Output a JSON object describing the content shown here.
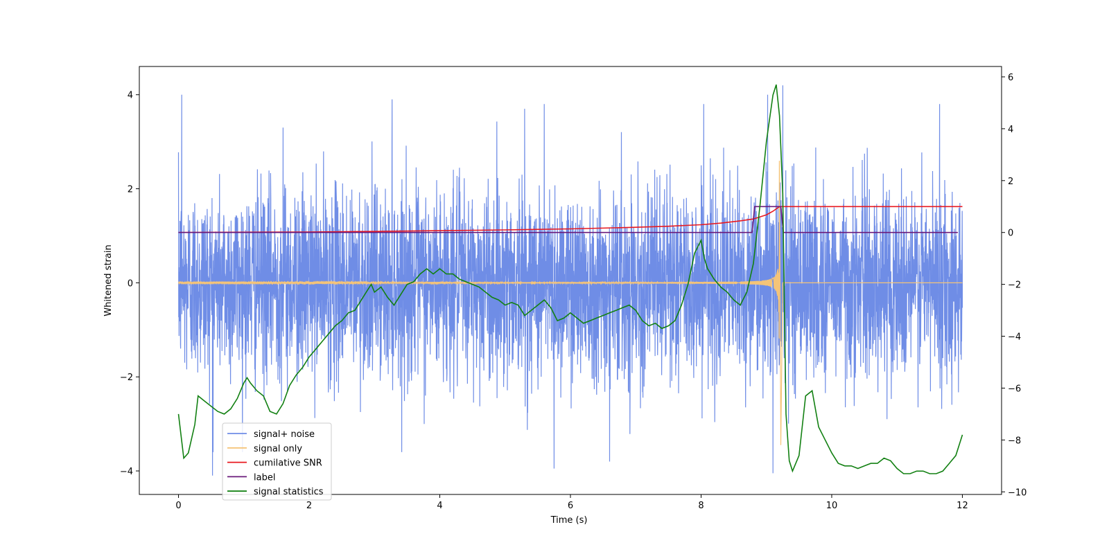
{
  "chart_data": {
    "type": "line",
    "xlabel": "Time (s)",
    "ylabel": "Whitened strain",
    "ylabel_right": "",
    "xlim": [
      -0.6,
      12.6
    ],
    "ylim": [
      -4.5,
      4.6
    ],
    "ylim_right": [
      -10.1,
      6.4
    ],
    "xticks": [
      0,
      2,
      4,
      6,
      8,
      10,
      12
    ],
    "yticks": [
      -4,
      -2,
      0,
      2,
      4
    ],
    "yticks_right": [
      -10,
      -8,
      -6,
      -4,
      -2,
      0,
      2,
      4,
      6
    ],
    "legend_position": "lower-left",
    "series": [
      {
        "name": "signal+ noise",
        "color": "#6f8de6",
        "axis": "left",
        "x_range": [
          0,
          12
        ],
        "std": 1.0,
        "peaks": [
          [
            0.05,
            4.0
          ],
          [
            1.6,
            3.3
          ],
          [
            3.27,
            3.9
          ],
          [
            5.3,
            3.7
          ],
          [
            5.6,
            3.8
          ],
          [
            8.04,
            3.8
          ],
          [
            9.02,
            4.0
          ],
          [
            9.25,
            4.2
          ],
          [
            11.65,
            3.8
          ],
          [
            0.52,
            -4.1
          ],
          [
            5.75,
            -3.95
          ],
          [
            9.1,
            -4.05
          ],
          [
            6.6,
            -3.8
          ]
        ]
      },
      {
        "name": "signal only",
        "color": "#f5c478",
        "axis": "left",
        "t_merge": 9.2,
        "amplitude_max": 3.0,
        "amplitude_min": -3.45
      },
      {
        "name": "cumilative SNR",
        "color": "#e8181f",
        "axis": "right",
        "x": [
          0,
          1,
          2,
          3,
          4,
          5,
          6,
          7,
          7.5,
          8,
          8.3,
          8.6,
          8.8,
          9.0,
          9.1,
          9.2,
          9.25,
          12
        ],
        "y": [
          0,
          0.01,
          0.02,
          0.04,
          0.07,
          0.1,
          0.14,
          0.2,
          0.24,
          0.3,
          0.36,
          0.45,
          0.52,
          0.68,
          0.82,
          1.0,
          1.0,
          1.0
        ]
      },
      {
        "name": "label",
        "color": "#6a1a7a",
        "axis": "right",
        "x": [
          0,
          8.78,
          8.82,
          9.22,
          9.26,
          11.93
        ],
        "y": [
          0,
          0,
          1.0,
          1.0,
          0,
          0
        ]
      },
      {
        "name": "signal statistics",
        "color": "#128012",
        "axis": "right",
        "x": [
          0,
          0.08,
          0.15,
          0.25,
          0.3,
          0.4,
          0.5,
          0.6,
          0.7,
          0.8,
          0.9,
          1.0,
          1.05,
          1.1,
          1.2,
          1.3,
          1.4,
          1.5,
          1.6,
          1.7,
          1.8,
          1.9,
          2.0,
          2.1,
          2.2,
          2.3,
          2.4,
          2.5,
          2.6,
          2.7,
          2.8,
          2.9,
          2.95,
          3.0,
          3.1,
          3.2,
          3.3,
          3.4,
          3.5,
          3.6,
          3.7,
          3.8,
          3.9,
          4.0,
          4.1,
          4.2,
          4.3,
          4.4,
          4.5,
          4.6,
          4.7,
          4.8,
          4.9,
          5.0,
          5.1,
          5.2,
          5.3,
          5.4,
          5.5,
          5.6,
          5.7,
          5.8,
          5.9,
          6.0,
          6.1,
          6.2,
          6.3,
          6.4,
          6.5,
          6.6,
          6.7,
          6.8,
          6.9,
          7.0,
          7.1,
          7.2,
          7.3,
          7.4,
          7.5,
          7.6,
          7.7,
          7.8,
          7.9,
          8.0,
          8.05,
          8.1,
          8.2,
          8.3,
          8.4,
          8.5,
          8.6,
          8.7,
          8.8,
          8.9,
          9.0,
          9.1,
          9.15,
          9.2,
          9.25,
          9.3,
          9.35,
          9.4,
          9.5,
          9.6,
          9.7,
          9.8,
          9.9,
          10.0,
          10.1,
          10.2,
          10.3,
          10.4,
          10.5,
          10.6,
          10.7,
          10.8,
          10.9,
          11.0,
          11.1,
          11.2,
          11.3,
          11.4,
          11.5,
          11.6,
          11.7,
          11.8,
          11.9,
          12.0
        ],
        "y": [
          -7.0,
          -8.7,
          -8.5,
          -7.4,
          -6.3,
          -6.5,
          -6.7,
          -6.9,
          -7.0,
          -6.8,
          -6.4,
          -5.8,
          -5.6,
          -5.8,
          -6.1,
          -6.3,
          -6.9,
          -7.0,
          -6.6,
          -5.9,
          -5.5,
          -5.2,
          -4.8,
          -4.5,
          -4.2,
          -3.9,
          -3.6,
          -3.4,
          -3.1,
          -3.0,
          -2.6,
          -2.2,
          -2.0,
          -2.3,
          -2.1,
          -2.5,
          -2.8,
          -2.4,
          -2.0,
          -1.9,
          -1.6,
          -1.4,
          -1.6,
          -1.4,
          -1.6,
          -1.6,
          -1.8,
          -1.9,
          -2.0,
          -2.1,
          -2.3,
          -2.5,
          -2.6,
          -2.8,
          -2.7,
          -2.8,
          -3.2,
          -3.0,
          -2.8,
          -2.6,
          -2.9,
          -3.4,
          -3.3,
          -3.1,
          -3.3,
          -3.5,
          -3.4,
          -3.3,
          -3.2,
          -3.1,
          -3.0,
          -2.9,
          -2.8,
          -3.0,
          -3.4,
          -3.6,
          -3.5,
          -3.7,
          -3.6,
          -3.4,
          -2.8,
          -2.0,
          -0.8,
          -0.3,
          -1.0,
          -1.4,
          -1.8,
          -2.1,
          -2.3,
          -2.6,
          -2.8,
          -2.3,
          -1.2,
          1.0,
          3.5,
          5.3,
          5.7,
          4.5,
          1.5,
          -7.0,
          -8.8,
          -9.2,
          -8.6,
          -6.3,
          -6.1,
          -7.5,
          -8.0,
          -8.5,
          -8.9,
          -9.0,
          -9.0,
          -9.1,
          -9.0,
          -8.9,
          -8.9,
          -8.7,
          -8.8,
          -9.1,
          -9.3,
          -9.3,
          -9.2,
          -9.2,
          -9.3,
          -9.3,
          -9.2,
          -8.9,
          -8.6,
          -7.8
        ]
      }
    ]
  }
}
